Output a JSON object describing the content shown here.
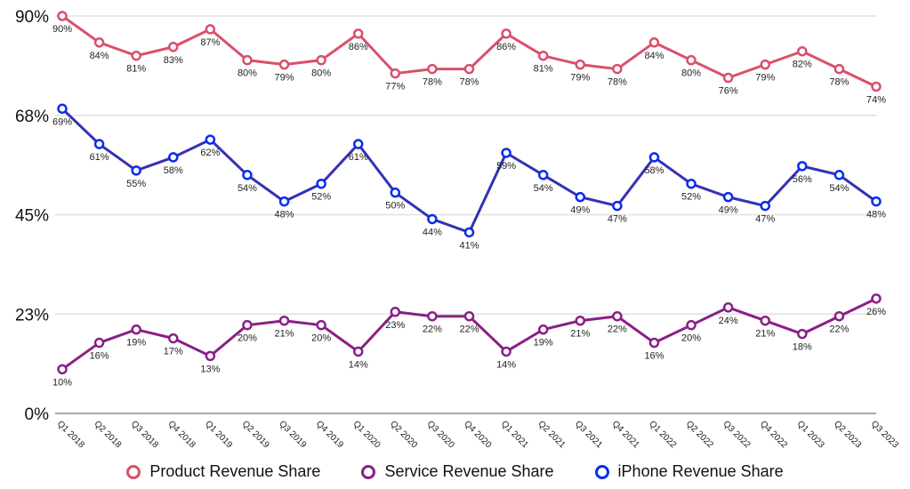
{
  "chart_data": {
    "type": "line",
    "categories": [
      "Q1 2018",
      "Q2 2018",
      "Q3 2018",
      "Q4 2018",
      "Q1 2019",
      "Q2 2019",
      "Q3 2019",
      "Q4 2019",
      "Q1 2020",
      "Q2 2020",
      "Q3 2020",
      "Q4 2020",
      "Q1 2021",
      "Q2 2021",
      "Q3 2021",
      "Q4 2021",
      "Q1 2022",
      "Q2 2022",
      "Q3 2022",
      "Q4 2022",
      "Q1 2023",
      "Q2 2023",
      "Q3 2023"
    ],
    "yticks": [
      "0%",
      "23%",
      "45%",
      "68%",
      "90%"
    ],
    "ytick_values": [
      0,
      22.5,
      45,
      67.5,
      90
    ],
    "ylim": [
      0,
      90
    ],
    "grid": true,
    "legend_position": "bottom",
    "series": [
      {
        "name": "Product Revenue Share",
        "color": "#d9506a",
        "marker_color": "#d9506a",
        "values": [
          90,
          84,
          81,
          83,
          87,
          80,
          79,
          80,
          86,
          77,
          78,
          78,
          86,
          81,
          79,
          78,
          84,
          80,
          76,
          79,
          82,
          78,
          74
        ]
      },
      {
        "name": "Service Revenue Share",
        "color": "#8a1f86",
        "marker_color": "#8a1f86",
        "values": [
          10,
          16,
          19,
          17,
          13,
          20,
          21,
          20,
          14,
          23,
          22,
          22,
          14,
          19,
          21,
          22,
          16,
          20,
          24,
          21,
          18,
          22,
          26
        ]
      },
      {
        "name": "iPhone Revenue Share",
        "color": "#3232b4",
        "marker_color": "#0a2cf0",
        "values": [
          69,
          61,
          55,
          58,
          62,
          54,
          48,
          52,
          61,
          50,
          44,
          41,
          59,
          54,
          49,
          47,
          58,
          52,
          49,
          47,
          56,
          54,
          48
        ]
      }
    ]
  }
}
